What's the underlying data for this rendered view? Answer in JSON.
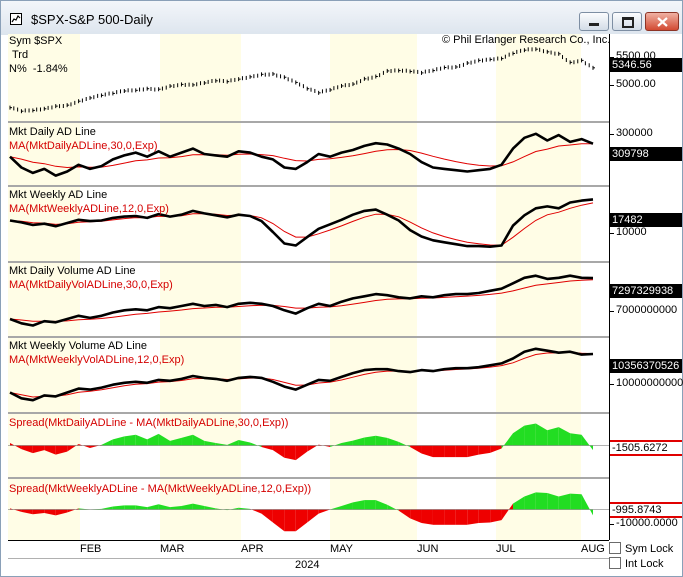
{
  "window": {
    "title": "$SPX-S&P 500-Daily",
    "buttons": {
      "minimize": "minimize",
      "maximize": "maximize",
      "close": "close"
    }
  },
  "colors": {
    "bg_yellow": "#fffde6",
    "bg_white": "#ffffff",
    "line": "#000000",
    "ma": "#e00000",
    "spread_pos": "#22dd22",
    "spread_neg": "#ee0000"
  },
  "header": {
    "sym_label": "Sym",
    "sym_value": "$SPX",
    "trd_label": "Trd",
    "pct_label": "N%",
    "pct_value": "-1.84%",
    "copyright": "© Phil Erlanger Research Co., Inc."
  },
  "panels": [
    {
      "id": "price",
      "title": "",
      "ma_label": "",
      "axis": [
        "5500.00",
        "5000.00"
      ],
      "value_box": "5346.56",
      "box_style": "black"
    },
    {
      "id": "daily_ad",
      "title": "Mkt Daily AD Line",
      "ma_label": "MA(MktDailyADLine,30,0,Exp)",
      "axis": [
        "300000"
      ],
      "value_box": "309798",
      "box_style": "black"
    },
    {
      "id": "weekly_ad",
      "title": "Mkt Weekly AD Line",
      "ma_label": "MA(MktWeeklyADLine,12,0,Exp)",
      "axis": [
        "10000"
      ],
      "value_box": "17482",
      "box_style": "black"
    },
    {
      "id": "daily_vol",
      "title": "Mkt Daily Volume AD Line",
      "ma_label": "MA(MktDailyVolADLine,30,0,Exp)",
      "axis": [
        "7000000000"
      ],
      "value_box": "7297329938",
      "box_style": "black"
    },
    {
      "id": "weekly_vol",
      "title": "Mkt Weekly Volume AD Line",
      "ma_label": "MA(MktWeeklyVolADLine,12,0,Exp)",
      "axis": [
        "10000000000"
      ],
      "value_box": "10356370526",
      "box_style": "black"
    },
    {
      "id": "spread_daily",
      "title": "",
      "ma_label": "Spread(MktDailyADLine - MA(MktDailyADLine,30,0,Exp))",
      "axis": [],
      "value_box": "-1505.6272",
      "box_style": "red"
    },
    {
      "id": "spread_weekly",
      "title": "",
      "ma_label": "Spread(MktWeeklyADLine - MA(MktWeeklyADLine,12,0,Exp))",
      "axis": [
        "-10000.0000"
      ],
      "value_box": "-995.8743",
      "box_style": "red"
    }
  ],
  "xaxis": {
    "months": [
      "FEB",
      "MAR",
      "APR",
      "MAY",
      "JUN",
      "JUL",
      "AUG"
    ],
    "year": "2024"
  },
  "controls": {
    "sym_lock": "Sym Lock",
    "int_lock": "Int Lock"
  },
  "chart_data": {
    "type": "line",
    "x_range": [
      "2024-01-02",
      "2024-08-01"
    ],
    "series": [
      {
        "name": "$SPX",
        "values": [
          4742,
          4688,
          4700,
          4725,
          4765,
          4780,
          4840,
          4890,
          4928,
          4958,
          4995,
          5005,
          5030,
          5022,
          5070,
          5095,
          5088,
          5117,
          5150,
          5137,
          5175,
          5210,
          5248,
          5254,
          5204,
          5125,
          5030,
          4967,
          5011,
          5072,
          5100,
          5180,
          5215,
          5300,
          5305,
          5292,
          5270,
          5305,
          5352,
          5360,
          5420,
          5460,
          5475,
          5487,
          5565,
          5615,
          5630,
          5590,
          5560,
          5430,
          5460,
          5347
        ]
      },
      {
        "name": "Mkt Daily AD Line",
        "values": [
          305000,
          301000,
          299000,
          300500,
          298000,
          299500,
          302000,
          300500,
          301500,
          304000,
          305500,
          306500,
          305000,
          307000,
          305000,
          306500,
          308000,
          306000,
          305500,
          305000,
          307000,
          306500,
          305000,
          304000,
          301000,
          300500,
          303000,
          306000,
          305000,
          306500,
          307500,
          309000,
          310000,
          309500,
          308000,
          306000,
          303000,
          301000,
          300500,
          300000,
          299500,
          300000,
          300500,
          302000,
          308000,
          312000,
          313500,
          311000,
          313000,
          310500,
          311500,
          309800
        ]
      },
      {
        "name": "Mkt Weekly AD Line",
        "values": [
          14200,
          13900,
          13500,
          13700,
          13300,
          13800,
          14300,
          14100,
          14200,
          14600,
          14800,
          14900,
          14600,
          15200,
          14800,
          15100,
          15700,
          15300,
          15000,
          14700,
          15100,
          14900,
          14100,
          12400,
          10600,
          10300,
          11600,
          12900,
          13600,
          14300,
          15100,
          15700,
          15900,
          15100,
          14200,
          12700,
          11700,
          11100,
          10800,
          10500,
          10200,
          10200,
          10100,
          10300,
          13400,
          15000,
          16100,
          16400,
          16100,
          17000,
          17300,
          17482
        ]
      },
      {
        "name": "Mkt Daily Volume AD Line",
        "values": [
          6920000000,
          6880000000,
          6860000000,
          6900000000,
          6890000000,
          6920000000,
          6950000000,
          6930000000,
          6950000000,
          6980000000,
          7000000000,
          7010000000,
          7000000000,
          7030000000,
          7020000000,
          7040000000,
          7060000000,
          7040000000,
          7050000000,
          7030000000,
          7060000000,
          7070000000,
          7060000000,
          7040000000,
          7000000000,
          6970000000,
          7020000000,
          7060000000,
          7040000000,
          7080000000,
          7110000000,
          7130000000,
          7150000000,
          7140000000,
          7120000000,
          7110000000,
          7130000000,
          7120000000,
          7140000000,
          7150000000,
          7150000000,
          7160000000,
          7180000000,
          7200000000,
          7250000000,
          7300000000,
          7320000000,
          7290000000,
          7300000000,
          7320000000,
          7300000000,
          7297329938
        ]
      },
      {
        "name": "Mkt Weekly Volume AD Line",
        "values": [
          9960000000,
          9900000000,
          9880000000,
          9930000000,
          9920000000,
          9960000000,
          10000000000,
          9990000000,
          10010000000,
          10040000000,
          10060000000,
          10070000000,
          10060000000,
          10090000000,
          10080000000,
          10100000000,
          10130000000,
          10110000000,
          10100000000,
          10080000000,
          10110000000,
          10120000000,
          10110000000,
          10070000000,
          10020000000,
          9990000000,
          10040000000,
          10090000000,
          10080000000,
          10120000000,
          10160000000,
          10190000000,
          10200000000,
          10200000000,
          10180000000,
          10170000000,
          10190000000,
          10180000000,
          10200000000,
          10210000000,
          10210000000,
          10220000000,
          10240000000,
          10260000000,
          10310000000,
          10380000000,
          10410000000,
          10390000000,
          10370000000,
          10380000000,
          10350000000,
          10356370526
        ]
      },
      {
        "name": "Spread(MktDailyADLine - MA(MktDailyADLine,30,0,Exp))",
        "values": [
          800,
          -1200,
          -2500,
          -1500,
          -3000,
          -2000,
          500,
          -800,
          200,
          2000,
          3000,
          3500,
          2000,
          3800,
          1500,
          2500,
          3500,
          1500,
          800,
          200,
          1800,
          1000,
          -500,
          -1500,
          -4000,
          -4800,
          -2000,
          300,
          -500,
          800,
          1600,
          2600,
          3200,
          2500,
          1200,
          -500,
          -2600,
          -3800,
          -3800,
          -3800,
          -3800,
          -3000,
          -2400,
          -1000,
          4000,
          6500,
          7200,
          5000,
          6000,
          4000,
          3500,
          -1506
        ]
      },
      {
        "name": "Spread(MktWeeklyADLine - MA(MktWeeklyADLine,12,0,Exp))",
        "values": [
          200,
          -400,
          -800,
          -600,
          -1000,
          -500,
          200,
          0,
          100,
          500,
          700,
          700,
          400,
          900,
          400,
          600,
          1000,
          600,
          200,
          -100,
          300,
          100,
          -700,
          -2200,
          -3700,
          -3700,
          -2200,
          -700,
          0,
          600,
          1200,
          1600,
          1600,
          800,
          -200,
          -1500,
          -2300,
          -2600,
          -2600,
          -2600,
          -2600,
          -2300,
          -2200,
          -1800,
          1000,
          2200,
          2900,
          2800,
          2200,
          2700,
          2600,
          -996
        ]
      }
    ],
    "x_labels": [
      "FEB",
      "MAR",
      "APR",
      "MAY",
      "JUN",
      "JUL",
      "AUG"
    ],
    "ylim": {
      "$SPX": [
        4600,
        5800
      ],
      "Mkt Daily AD Line": [
        296000,
        316000
      ],
      "Mkt Weekly AD Line": [
        8500,
        18800
      ],
      "Mkt Daily Volume AD Line": [
        6800000000,
        7400000000
      ],
      "Mkt Weekly Volume AD Line": [
        9800000000,
        10480000000
      ],
      "Spread(MktDailyADLine - MA(MktDailyADLine,30,0,Exp))": [
        -9000,
        9000
      ],
      "Spread(MktWeeklyADLine - MA(MktWeeklyADLine,12,0,Exp))": [
        -4500,
        4500
      ]
    },
    "grid": false
  }
}
